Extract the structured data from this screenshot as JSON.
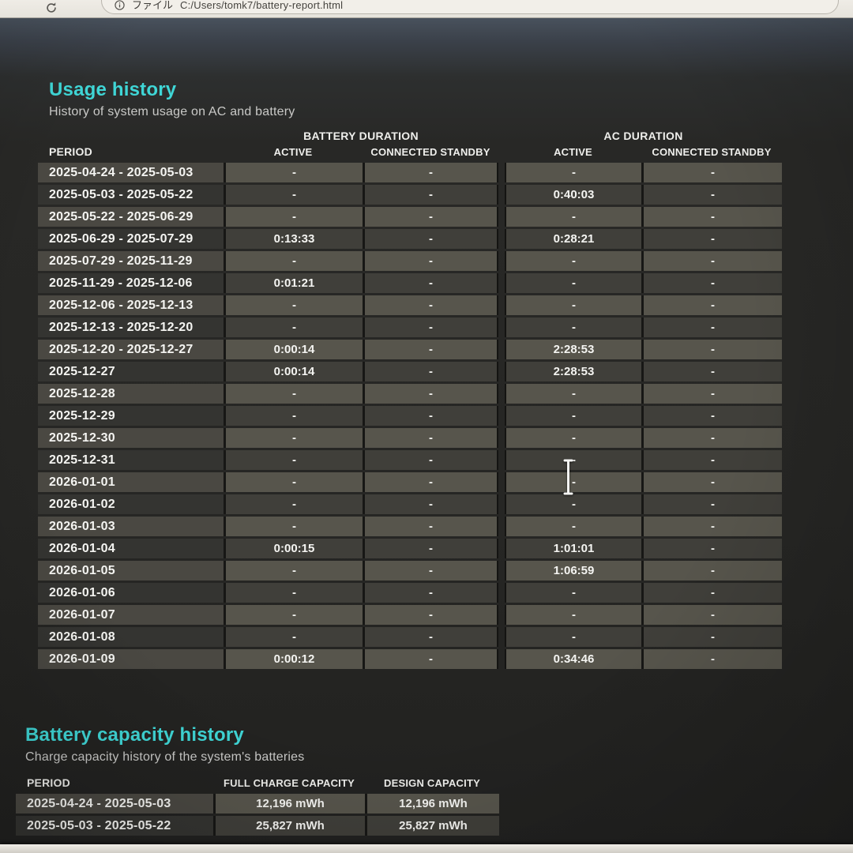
{
  "browser": {
    "file_label": "ファイル",
    "url": "C:/Users/tomk7/battery-report.html"
  },
  "usage_history": {
    "title": "Usage history",
    "subtitle": "History of system usage on AC and battery",
    "group_headers": {
      "battery": "BATTERY DURATION",
      "ac": "AC DURATION"
    },
    "col_headers": {
      "period": "PERIOD",
      "active": "ACTIVE",
      "standby": "CONNECTED STANDBY"
    },
    "rows": [
      {
        "period": "2025-04-24 - 2025-05-03",
        "batt_active": "-",
        "batt_standby": "-",
        "ac_active": "-",
        "ac_standby": "-"
      },
      {
        "period": "2025-05-03 - 2025-05-22",
        "batt_active": "-",
        "batt_standby": "-",
        "ac_active": "0:40:03",
        "ac_standby": "-"
      },
      {
        "period": "2025-05-22 - 2025-06-29",
        "batt_active": "-",
        "batt_standby": "-",
        "ac_active": "-",
        "ac_standby": "-"
      },
      {
        "period": "2025-06-29 - 2025-07-29",
        "batt_active": "0:13:33",
        "batt_standby": "-",
        "ac_active": "0:28:21",
        "ac_standby": "-"
      },
      {
        "period": "2025-07-29 - 2025-11-29",
        "batt_active": "-",
        "batt_standby": "-",
        "ac_active": "-",
        "ac_standby": "-"
      },
      {
        "period": "2025-11-29 - 2025-12-06",
        "batt_active": "0:01:21",
        "batt_standby": "-",
        "ac_active": "-",
        "ac_standby": "-"
      },
      {
        "period": "2025-12-06 - 2025-12-13",
        "batt_active": "-",
        "batt_standby": "-",
        "ac_active": "-",
        "ac_standby": "-"
      },
      {
        "period": "2025-12-13 - 2025-12-20",
        "batt_active": "-",
        "batt_standby": "-",
        "ac_active": "-",
        "ac_standby": "-"
      },
      {
        "period": "2025-12-20 - 2025-12-27",
        "batt_active": "0:00:14",
        "batt_standby": "-",
        "ac_active": "2:28:53",
        "ac_standby": "-"
      },
      {
        "period": "2025-12-27",
        "batt_active": "0:00:14",
        "batt_standby": "-",
        "ac_active": "2:28:53",
        "ac_standby": "-"
      },
      {
        "period": "2025-12-28",
        "batt_active": "-",
        "batt_standby": "-",
        "ac_active": "-",
        "ac_standby": "-"
      },
      {
        "period": "2025-12-29",
        "batt_active": "-",
        "batt_standby": "-",
        "ac_active": "-",
        "ac_standby": "-"
      },
      {
        "period": "2025-12-30",
        "batt_active": "-",
        "batt_standby": "-",
        "ac_active": "-",
        "ac_standby": "-"
      },
      {
        "period": "2025-12-31",
        "batt_active": "-",
        "batt_standby": "-",
        "ac_active": "-",
        "ac_standby": "-"
      },
      {
        "period": "2026-01-01",
        "batt_active": "-",
        "batt_standby": "-",
        "ac_active": "-",
        "ac_standby": "-"
      },
      {
        "period": "2026-01-02",
        "batt_active": "-",
        "batt_standby": "-",
        "ac_active": "-",
        "ac_standby": "-"
      },
      {
        "period": "2026-01-03",
        "batt_active": "-",
        "batt_standby": "-",
        "ac_active": "-",
        "ac_standby": "-"
      },
      {
        "period": "2026-01-04",
        "batt_active": "0:00:15",
        "batt_standby": "-",
        "ac_active": "1:01:01",
        "ac_standby": "-"
      },
      {
        "period": "2026-01-05",
        "batt_active": "-",
        "batt_standby": "-",
        "ac_active": "1:06:59",
        "ac_standby": "-"
      },
      {
        "period": "2026-01-06",
        "batt_active": "-",
        "batt_standby": "-",
        "ac_active": "-",
        "ac_standby": "-"
      },
      {
        "period": "2026-01-07",
        "batt_active": "-",
        "batt_standby": "-",
        "ac_active": "-",
        "ac_standby": "-"
      },
      {
        "period": "2026-01-08",
        "batt_active": "-",
        "batt_standby": "-",
        "ac_active": "-",
        "ac_standby": "-"
      },
      {
        "period": "2026-01-09",
        "batt_active": "0:00:12",
        "batt_standby": "-",
        "ac_active": "0:34:46",
        "ac_standby": "-"
      }
    ]
  },
  "capacity_history": {
    "title": "Battery capacity history",
    "subtitle": "Charge capacity history of the system's batteries",
    "col_headers": {
      "period": "PERIOD",
      "full": "FULL CHARGE CAPACITY",
      "design": "DESIGN CAPACITY"
    },
    "rows": [
      {
        "period": "2025-04-24 - 2025-05-03",
        "full": "12,196 mWh",
        "design": "12,196 mWh"
      },
      {
        "period": "2025-05-03 - 2025-05-22",
        "full": "25,827 mWh",
        "design": "25,827 mWh"
      }
    ]
  },
  "colors": {
    "accent": "#3fd6d6",
    "page_background": "#272725",
    "row_light": "#57554c",
    "row_dark": "#403f3a"
  }
}
